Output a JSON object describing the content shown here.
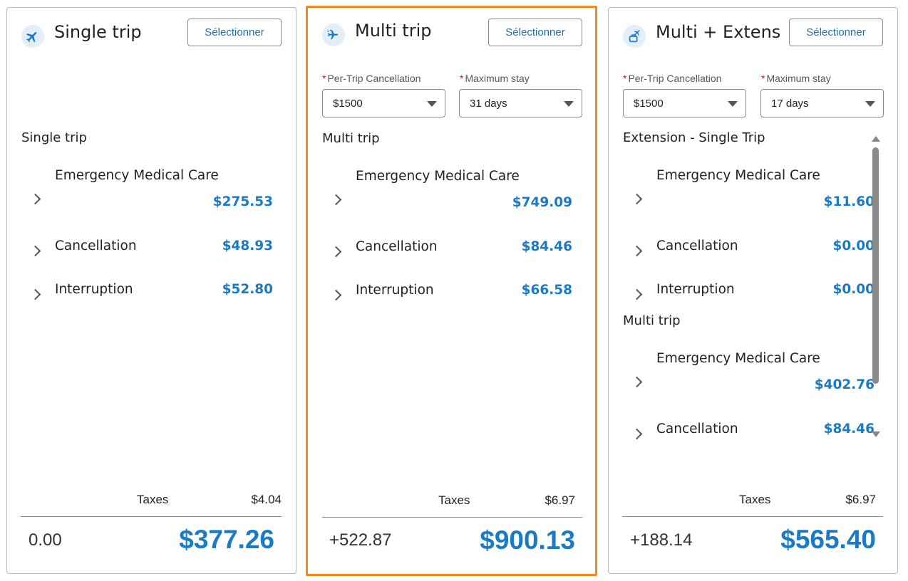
{
  "colors": {
    "accent_blue": "#1a7bc4",
    "selected_border": "#f08a1c"
  },
  "cards": [
    {
      "icon": "plane-icon",
      "title": "Single trip",
      "button": "Sélectionner",
      "section_label": "Single trip",
      "rows": [
        {
          "name": "Emergency Medical Care",
          "price": "$275.53"
        },
        {
          "name": "Cancellation",
          "price": "$48.93"
        },
        {
          "name": "Interruption",
          "price": "$52.80"
        }
      ],
      "taxes_label": "Taxes",
      "taxes_value": "$4.04",
      "difference": "0.00",
      "total": "$377.26"
    },
    {
      "icon": "multi-plane-icon",
      "title": "Multi trip",
      "button": "Sélectionner",
      "dropdowns": [
        {
          "label": "Per-Trip Cancellation",
          "value": "$1500"
        },
        {
          "label": "Maximum stay",
          "value": "31 days"
        }
      ],
      "section_label": "Multi trip",
      "rows": [
        {
          "name": "Emergency Medical Care",
          "price": "$749.09"
        },
        {
          "name": "Cancellation",
          "price": "$84.46"
        },
        {
          "name": "Interruption",
          "price": "$66.58"
        }
      ],
      "taxes_label": "Taxes",
      "taxes_value": "$6.97",
      "difference": "+522.87",
      "total": "$900.13"
    },
    {
      "icon": "suitcase-plane-icon",
      "title": "Multi + Extens",
      "button": "Sélectionner",
      "dropdowns": [
        {
          "label": "Per-Trip Cancellation",
          "value": "$1500"
        },
        {
          "label": "Maximum stay",
          "value": "17 days"
        }
      ],
      "sections": [
        {
          "label": "Extension - Single Trip",
          "rows": [
            {
              "name": "Emergency Medical Care",
              "price": "$11.60"
            },
            {
              "name": "Cancellation",
              "price": "$0.00"
            },
            {
              "name": "Interruption",
              "price": "$0.00"
            }
          ]
        },
        {
          "label": "Multi trip",
          "rows": [
            {
              "name": "Emergency Medical Care",
              "price": "$402.76"
            },
            {
              "name": "Cancellation",
              "price": "$84.46"
            }
          ]
        }
      ],
      "taxes_label": "Taxes",
      "taxes_value": "$6.97",
      "difference": "+188.14",
      "total": "$565.40"
    }
  ]
}
